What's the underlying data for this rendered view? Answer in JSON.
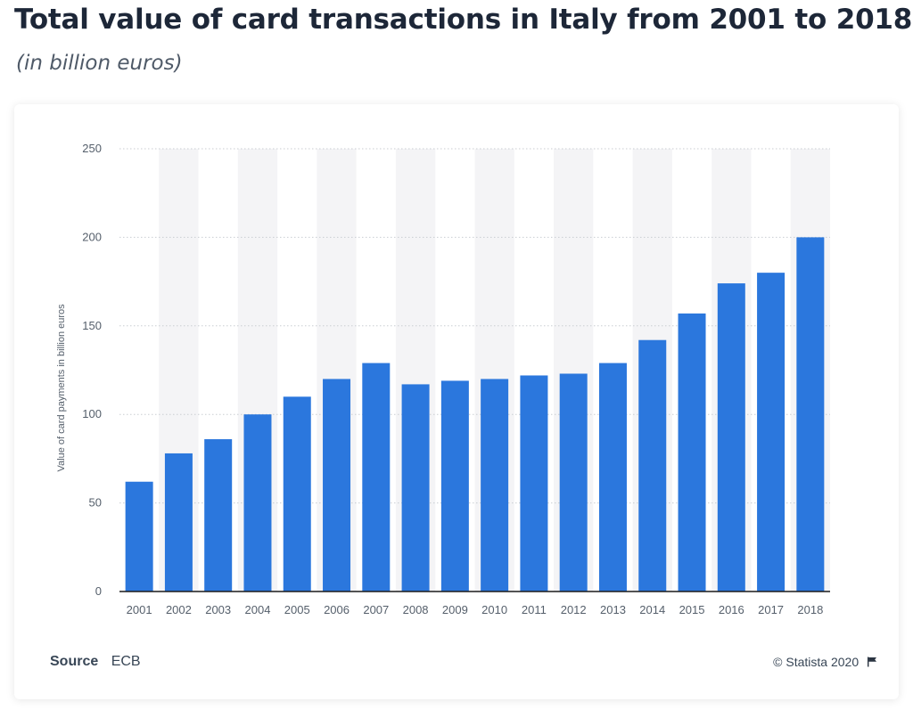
{
  "title": "Total value of card transactions in Italy from 2001 to 2018",
  "subtitle": "(in billion euros)",
  "source": {
    "label": "Source",
    "value": "ECB"
  },
  "credit": "© Statista 2020",
  "colors": {
    "bar": "#2b77dd",
    "band": "#f4f4f6",
    "grid": "#c9cdd2",
    "axis": "#1c1c1c",
    "tick_text": "#555f6b"
  },
  "chart_data": {
    "type": "bar",
    "title": "",
    "xlabel": "",
    "ylabel": "Value of card payments in billion euros",
    "categories": [
      "2001",
      "2002",
      "2003",
      "2004",
      "2005",
      "2006",
      "2007",
      "2008",
      "2009",
      "2010",
      "2011",
      "2012",
      "2013",
      "2014",
      "2015",
      "2016",
      "2017",
      "2018"
    ],
    "values": [
      62,
      78,
      86,
      100,
      110,
      120,
      129,
      117,
      119,
      120,
      122,
      123,
      129,
      142,
      157,
      174,
      180,
      200
    ],
    "ylim": [
      0,
      250
    ],
    "yticks": [
      0,
      50,
      100,
      150,
      200,
      250
    ],
    "grid": true,
    "legend": false,
    "alternating_bands": true
  }
}
